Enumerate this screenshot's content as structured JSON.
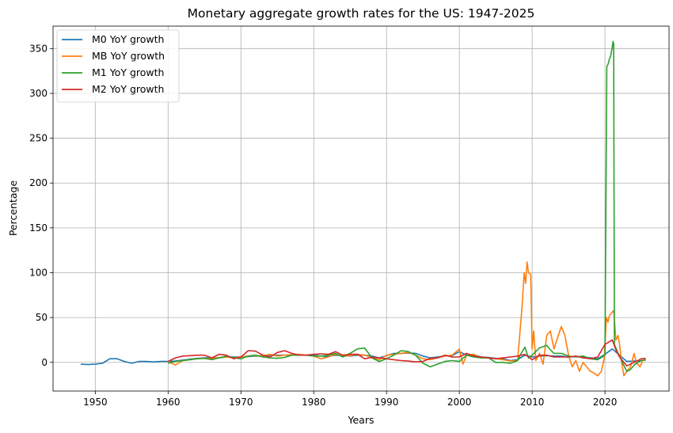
{
  "chart_data": {
    "type": "line",
    "title": "Monetary aggregate growth rates for the US: 1947-2025",
    "xlabel": "Years",
    "ylabel": "Percentage",
    "xlim": [
      1944.2,
      2028.8
    ],
    "ylim": [
      -32,
      375
    ],
    "xticks": [
      1950,
      1960,
      1970,
      1980,
      1990,
      2000,
      2010,
      2020
    ],
    "yticks": [
      0,
      50,
      100,
      150,
      200,
      250,
      300,
      350
    ],
    "grid": true,
    "legend_position": "top-left",
    "series": [
      {
        "name": "M0 YoY growth",
        "color": "#1f77b4",
        "points": [
          [
            1948,
            -2
          ],
          [
            1949,
            -2.5
          ],
          [
            1950,
            -2
          ],
          [
            1951,
            -1
          ],
          [
            1952,
            4
          ],
          [
            1953,
            4
          ],
          [
            1954,
            1
          ],
          [
            1955,
            -1
          ],
          [
            1956,
            1
          ],
          [
            1957,
            1
          ],
          [
            1958,
            0.5
          ],
          [
            1959,
            1
          ],
          [
            1960,
            1
          ],
          [
            1961,
            1.5
          ],
          [
            1962,
            2.5
          ],
          [
            1963,
            3.5
          ],
          [
            1964,
            4.5
          ],
          [
            1965,
            5
          ],
          [
            1966,
            5
          ],
          [
            1967,
            5
          ],
          [
            1968,
            6
          ],
          [
            1969,
            6
          ],
          [
            1970,
            6
          ],
          [
            1971,
            6.5
          ],
          [
            1972,
            7
          ],
          [
            1973,
            7
          ],
          [
            1974,
            8
          ],
          [
            1975,
            8
          ],
          [
            1976,
            8
          ],
          [
            1977,
            8
          ],
          [
            1978,
            8.5
          ],
          [
            1979,
            8
          ],
          [
            1980,
            8
          ],
          [
            1981,
            7
          ],
          [
            1982,
            6.5
          ],
          [
            1983,
            8
          ],
          [
            1984,
            7.5
          ],
          [
            1985,
            7
          ],
          [
            1986,
            8
          ],
          [
            1987,
            8
          ],
          [
            1988,
            7
          ],
          [
            1989,
            5
          ],
          [
            1990,
            7.5
          ],
          [
            1991,
            10
          ],
          [
            1992,
            10
          ],
          [
            1993,
            10.5
          ],
          [
            1994,
            10
          ],
          [
            1995,
            7
          ],
          [
            1996,
            5
          ],
          [
            1997,
            6
          ],
          [
            1998,
            7
          ],
          [
            1999,
            7.5
          ],
          [
            2000,
            12
          ],
          [
            2001,
            8
          ],
          [
            2002,
            8.5
          ],
          [
            2003,
            6
          ],
          [
            2004,
            5.5
          ],
          [
            2005,
            4.5
          ],
          [
            2006,
            4
          ],
          [
            2007,
            2
          ],
          [
            2008,
            3
          ],
          [
            2009,
            8
          ],
          [
            2010,
            6
          ],
          [
            2011,
            7
          ],
          [
            2012,
            7.5
          ],
          [
            2013,
            7
          ],
          [
            2014,
            7
          ],
          [
            2015,
            6
          ],
          [
            2016,
            6.5
          ],
          [
            2017,
            6
          ],
          [
            2018,
            5
          ],
          [
            2019,
            4
          ],
          [
            2020,
            9
          ],
          [
            2021,
            15
          ],
          [
            2022,
            8
          ],
          [
            2023,
            1
          ],
          [
            2024,
            1.5
          ],
          [
            2025,
            2
          ],
          [
            2025.6,
            2.5
          ]
        ]
      },
      {
        "name": "MB YoY growth",
        "color": "#ff7f0e",
        "points": [
          [
            1960,
            1
          ],
          [
            1961,
            -3
          ],
          [
            1962,
            2
          ],
          [
            1963,
            3
          ],
          [
            1964,
            4
          ],
          [
            1965,
            4.5
          ],
          [
            1966,
            4
          ],
          [
            1967,
            5.5
          ],
          [
            1968,
            6
          ],
          [
            1969,
            5
          ],
          [
            1970,
            6
          ],
          [
            1971,
            7
          ],
          [
            1972,
            7.5
          ],
          [
            1973,
            7.5
          ],
          [
            1974,
            9
          ],
          [
            1975,
            7
          ],
          [
            1976,
            8
          ],
          [
            1977,
            8.5
          ],
          [
            1978,
            9
          ],
          [
            1979,
            8
          ],
          [
            1980,
            7
          ],
          [
            1981,
            4
          ],
          [
            1982,
            6
          ],
          [
            1983,
            9
          ],
          [
            1984,
            7
          ],
          [
            1985,
            7.5
          ],
          [
            1986,
            9
          ],
          [
            1987,
            8
          ],
          [
            1988,
            5.5
          ],
          [
            1989,
            3
          ],
          [
            1990,
            8
          ],
          [
            1991,
            9
          ],
          [
            1992,
            10
          ],
          [
            1993,
            11
          ],
          [
            1994,
            8
          ],
          [
            1995,
            4
          ],
          [
            1996,
            3
          ],
          [
            1997,
            5
          ],
          [
            1998,
            7
          ],
          [
            1999,
            8
          ],
          [
            2000,
            15
          ],
          [
            2000.5,
            -2
          ],
          [
            2001,
            8
          ],
          [
            2002,
            9
          ],
          [
            2003,
            5
          ],
          [
            2004,
            5
          ],
          [
            2005,
            4
          ],
          [
            2006,
            3
          ],
          [
            2007,
            1.5
          ],
          [
            2008,
            2
          ],
          [
            2008.6,
            60
          ],
          [
            2008.9,
            100
          ],
          [
            2009.1,
            88
          ],
          [
            2009.3,
            112
          ],
          [
            2009.5,
            100
          ],
          [
            2009.8,
            98
          ],
          [
            2010,
            15
          ],
          [
            2010.2,
            35
          ],
          [
            2010.5,
            2
          ],
          [
            2011,
            10
          ],
          [
            2011.5,
            -2
          ],
          [
            2012,
            30
          ],
          [
            2012.5,
            35
          ],
          [
            2013,
            15
          ],
          [
            2013.6,
            30
          ],
          [
            2014,
            40
          ],
          [
            2014.5,
            30
          ],
          [
            2015,
            8
          ],
          [
            2015.5,
            -5
          ],
          [
            2016,
            2
          ],
          [
            2016.5,
            -10
          ],
          [
            2017,
            0
          ],
          [
            2017.5,
            -5
          ],
          [
            2018,
            -10
          ],
          [
            2018.5,
            -12
          ],
          [
            2019,
            -15
          ],
          [
            2019.5,
            -10
          ],
          [
            2019.9,
            5
          ],
          [
            2020.2,
            50
          ],
          [
            2020.4,
            45
          ],
          [
            2020.6,
            52
          ],
          [
            2020.9,
            55
          ],
          [
            2021.2,
            58
          ],
          [
            2021.5,
            25
          ],
          [
            2021.8,
            30
          ],
          [
            2022,
            20
          ],
          [
            2022.3,
            0
          ],
          [
            2022.6,
            -15
          ],
          [
            2023,
            -10
          ],
          [
            2023.5,
            -5
          ],
          [
            2024,
            10
          ],
          [
            2024.3,
            0
          ],
          [
            2024.8,
            -5
          ],
          [
            2025.2,
            2
          ],
          [
            2025.6,
            3
          ]
        ]
      },
      {
        "name": "M1 YoY growth",
        "color": "#2ca02c",
        "points": [
          [
            1960,
            -1
          ],
          [
            1961,
            1
          ],
          [
            1962,
            2
          ],
          [
            1963,
            3
          ],
          [
            1964,
            4
          ],
          [
            1965,
            4.5
          ],
          [
            1966,
            3
          ],
          [
            1967,
            5
          ],
          [
            1968,
            7
          ],
          [
            1969,
            5
          ],
          [
            1970,
            4
          ],
          [
            1971,
            7
          ],
          [
            1972,
            8
          ],
          [
            1973,
            6
          ],
          [
            1974,
            5
          ],
          [
            1975,
            4.5
          ],
          [
            1976,
            5.5
          ],
          [
            1977,
            8
          ],
          [
            1978,
            8
          ],
          [
            1979,
            8
          ],
          [
            1980,
            7
          ],
          [
            1981,
            7
          ],
          [
            1982,
            8
          ],
          [
            1983,
            10
          ],
          [
            1984,
            6
          ],
          [
            1985,
            10
          ],
          [
            1986,
            15
          ],
          [
            1987,
            16
          ],
          [
            1988,
            5
          ],
          [
            1989,
            1
          ],
          [
            1990,
            4
          ],
          [
            1991,
            8
          ],
          [
            1992,
            13
          ],
          [
            1993,
            12
          ],
          [
            1994,
            8
          ],
          [
            1995,
            -1
          ],
          [
            1996,
            -5
          ],
          [
            1997,
            -2
          ],
          [
            1998,
            1
          ],
          [
            1999,
            2
          ],
          [
            2000,
            1
          ],
          [
            2001,
            8
          ],
          [
            2002,
            6
          ],
          [
            2003,
            5
          ],
          [
            2004,
            5
          ],
          [
            2005,
            0
          ],
          [
            2006,
            0
          ],
          [
            2007,
            -1
          ],
          [
            2008,
            2
          ],
          [
            2008.5,
            10
          ],
          [
            2009,
            17
          ],
          [
            2009.5,
            5
          ],
          [
            2010,
            8
          ],
          [
            2011,
            16
          ],
          [
            2012,
            19
          ],
          [
            2012.5,
            14
          ],
          [
            2013,
            10
          ],
          [
            2014,
            10
          ],
          [
            2015,
            7
          ],
          [
            2016,
            6
          ],
          [
            2017,
            7
          ],
          [
            2018,
            4
          ],
          [
            2019,
            3
          ],
          [
            2020,
            8
          ],
          [
            2020.25,
            330
          ],
          [
            2020.45,
            333
          ],
          [
            2020.6,
            338
          ],
          [
            2020.8,
            342
          ],
          [
            2021,
            352
          ],
          [
            2021.1,
            358
          ],
          [
            2021.2,
            355
          ],
          [
            2021.3,
            20
          ],
          [
            2021.7,
            12
          ],
          [
            2022,
            7
          ],
          [
            2022.5,
            -2
          ],
          [
            2023,
            -10
          ],
          [
            2023.5,
            -8
          ],
          [
            2024,
            -3
          ],
          [
            2024.5,
            0
          ],
          [
            2025,
            2
          ],
          [
            2025.6,
            3
          ]
        ]
      },
      {
        "name": "M2 YoY growth",
        "color": "#d62728",
        "points": [
          [
            1960,
            1
          ],
          [
            1961,
            5
          ],
          [
            1962,
            7
          ],
          [
            1963,
            7.5
          ],
          [
            1964,
            8
          ],
          [
            1965,
            8
          ],
          [
            1966,
            5
          ],
          [
            1967,
            9
          ],
          [
            1968,
            8
          ],
          [
            1969,
            4
          ],
          [
            1970,
            6
          ],
          [
            1971,
            13
          ],
          [
            1972,
            12.5
          ],
          [
            1973,
            8
          ],
          [
            1974,
            6
          ],
          [
            1975,
            11
          ],
          [
            1976,
            13
          ],
          [
            1977,
            10
          ],
          [
            1978,
            8
          ],
          [
            1979,
            8
          ],
          [
            1980,
            9
          ],
          [
            1981,
            9.5
          ],
          [
            1982,
            9
          ],
          [
            1983,
            12
          ],
          [
            1984,
            8
          ],
          [
            1985,
            9
          ],
          [
            1986,
            9
          ],
          [
            1987,
            4
          ],
          [
            1988,
            5.5
          ],
          [
            1989,
            5
          ],
          [
            1990,
            4
          ],
          [
            1991,
            3
          ],
          [
            1992,
            2
          ],
          [
            1993,
            1.5
          ],
          [
            1994,
            0.5
          ],
          [
            1995,
            1
          ],
          [
            1996,
            4.5
          ],
          [
            1997,
            5
          ],
          [
            1998,
            8
          ],
          [
            1999,
            6
          ],
          [
            2000,
            6
          ],
          [
            2001,
            10
          ],
          [
            2002,
            7
          ],
          [
            2003,
            6
          ],
          [
            2004,
            5
          ],
          [
            2005,
            4
          ],
          [
            2006,
            5
          ],
          [
            2007,
            6
          ],
          [
            2008,
            7
          ],
          [
            2009,
            9
          ],
          [
            2010,
            3
          ],
          [
            2011,
            8
          ],
          [
            2012,
            8
          ],
          [
            2013,
            6
          ],
          [
            2014,
            6
          ],
          [
            2015,
            6
          ],
          [
            2016,
            7
          ],
          [
            2017,
            5
          ],
          [
            2018,
            4
          ],
          [
            2019,
            6
          ],
          [
            2020,
            20
          ],
          [
            2021,
            25
          ],
          [
            2021.5,
            14
          ],
          [
            2022,
            6
          ],
          [
            2022.5,
            1
          ],
          [
            2023,
            -4
          ],
          [
            2024,
            0
          ],
          [
            2025,
            4
          ],
          [
            2025.6,
            4.5
          ]
        ]
      }
    ]
  }
}
